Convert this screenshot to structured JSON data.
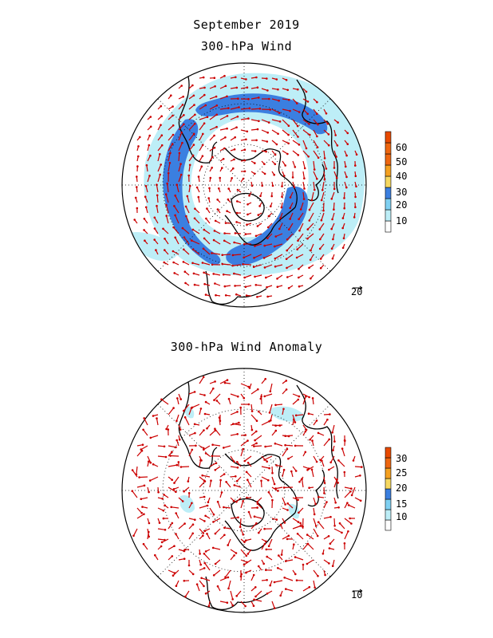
{
  "header": {
    "title": "September 2019",
    "panel1_title": "300-hPa Wind",
    "panel2_title": "300-hPa Wind Anomaly"
  },
  "panel1": {
    "reference_vector_label": "20",
    "colorbar": {
      "labels": [
        "10",
        "20",
        "30",
        "40",
        "50",
        "60"
      ],
      "colors": [
        "#ffffff",
        "#bdeef7",
        "#7fd0f2",
        "#3b7fe0",
        "#f6d860",
        "#f5a020",
        "#ee6610"
      ]
    }
  },
  "panel2": {
    "reference_vector_label": "10",
    "colorbar": {
      "labels": [
        "10",
        "15",
        "20",
        "25",
        "30"
      ],
      "colors": [
        "#ffffff",
        "#bdeef7",
        "#7fd0f2",
        "#f6d860",
        "#f5a020",
        "#ee6610"
      ]
    }
  },
  "style": {
    "vector_color": "#cc0000",
    "coast_color": "#000000"
  }
}
